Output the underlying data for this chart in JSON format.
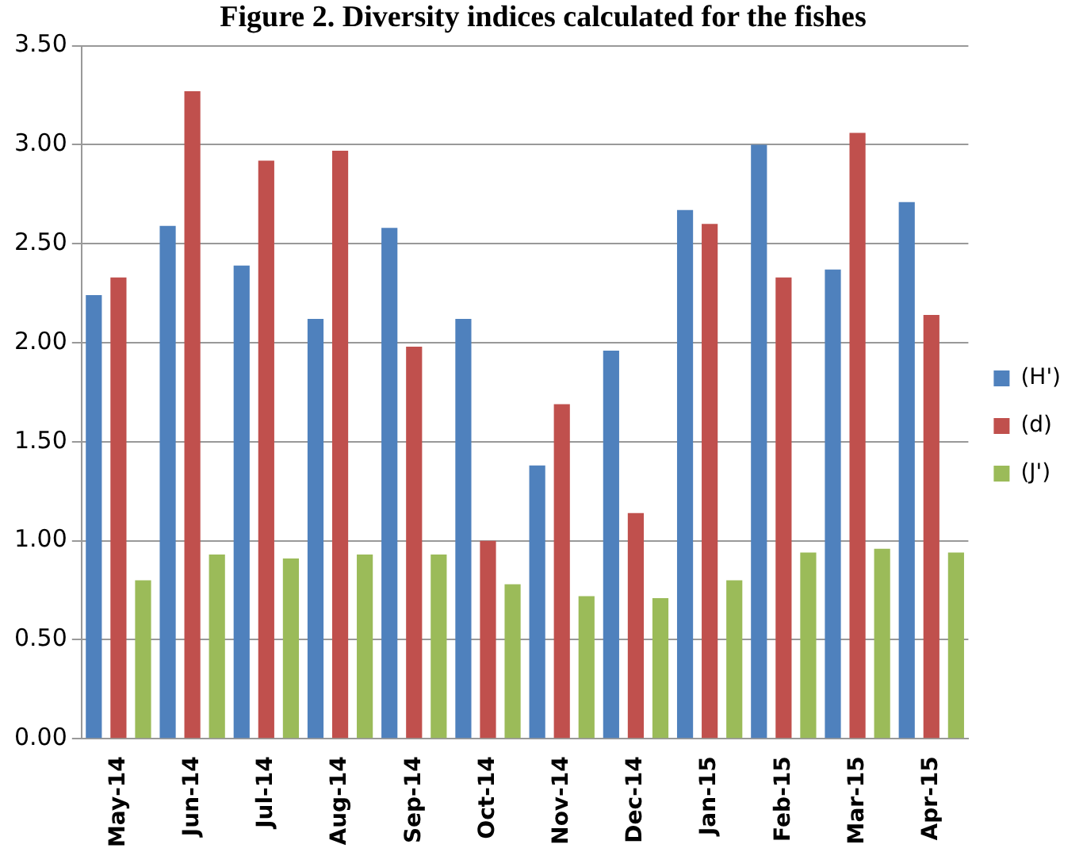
{
  "chart_data": {
    "type": "bar",
    "title": "Figure 2. Diversity indices calculated for the fishes",
    "categories": [
      "May-14",
      "Jun-14",
      "Jul-14",
      "Aug-14",
      "Sep-14",
      "Oct-14",
      "Nov-14",
      "Dec-14",
      "Jan-15",
      "Feb-15",
      "Mar-15",
      "Apr-15"
    ],
    "series": [
      {
        "name": "(H')",
        "color": "#4f81bd",
        "values": [
          2.24,
          2.59,
          2.39,
          2.12,
          2.58,
          2.12,
          1.38,
          1.96,
          2.67,
          3.0,
          2.37,
          2.71
        ]
      },
      {
        "name": "(d)",
        "color": "#c0504d",
        "values": [
          2.33,
          3.27,
          2.92,
          2.97,
          1.98,
          1.0,
          1.69,
          1.14,
          2.6,
          2.33,
          3.06,
          2.14
        ]
      },
      {
        "name": "(J')",
        "color": "#9bbb59",
        "values": [
          0.8,
          0.93,
          0.91,
          0.93,
          0.93,
          0.78,
          0.72,
          0.71,
          0.8,
          0.94,
          0.96,
          0.94
        ]
      }
    ],
    "ylim": [
      0,
      3.5
    ],
    "yticks": [
      {
        "value": 0,
        "label": "0.00"
      },
      {
        "value": 0.5,
        "label": "0.50"
      },
      {
        "value": 1,
        "label": "1.00"
      },
      {
        "value": 1.5,
        "label": "1.50"
      },
      {
        "value": 2,
        "label": "2.00"
      },
      {
        "value": 2.5,
        "label": "2.50"
      },
      {
        "value": 3,
        "label": "3.00"
      },
      {
        "value": 3.5,
        "label": "3.50"
      }
    ],
    "grid": "y",
    "legend": "right"
  }
}
